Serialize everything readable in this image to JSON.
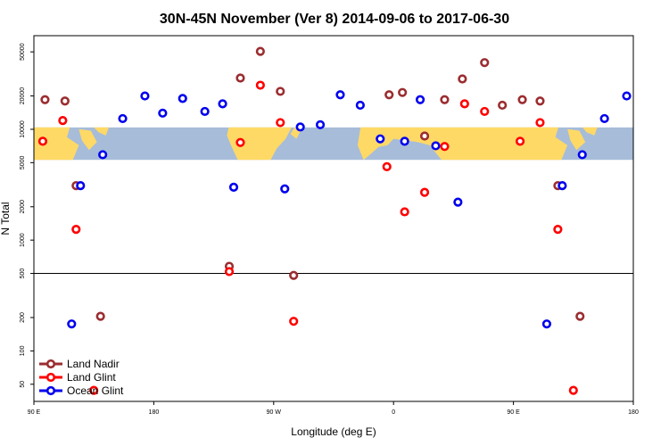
{
  "chart_data": {
    "type": "scatter",
    "title": "30N-45N November (Ver 8)   2014-09-06 to 2017-06-30",
    "xlabel": "Longitude (deg E)",
    "ylabel": "N Total",
    "xlim": [
      -90,
      180
    ],
    "ylim": [
      35,
      70000
    ],
    "yscale": "log",
    "reference_line": 500,
    "x_ticks": [
      {
        "value": -90,
        "label": "90 E"
      },
      {
        "value": -36,
        "label": "180"
      },
      {
        "value": 18,
        "label": "90 W"
      },
      {
        "value": 72,
        "label": "0"
      },
      {
        "value": 126,
        "label": "90 E"
      },
      {
        "value": 180,
        "label": "180"
      }
    ],
    "y_ticks": [
      {
        "value": 50,
        "label": "50"
      },
      {
        "value": 100,
        "label": "100"
      },
      {
        "value": 200,
        "label": "200"
      },
      {
        "value": 500,
        "label": "500"
      },
      {
        "value": 1000,
        "label": "1000"
      },
      {
        "value": 2000,
        "label": "2000"
      },
      {
        "value": 5000,
        "label": "5000"
      },
      {
        "value": 10000,
        "label": "10000"
      },
      {
        "value": 20000,
        "label": "20000"
      },
      {
        "value": 50000,
        "label": "50000"
      }
    ],
    "map_band": {
      "ymin": 5300,
      "ymax": 10400,
      "land_color": "#ffd966",
      "ocean_color": "#a6bcd9"
    },
    "series": [
      {
        "name": "Land Nadir",
        "color": "#9b2d30",
        "points": [
          {
            "x": -85,
            "y": 18500
          },
          {
            "x": -76,
            "y": 18000
          },
          {
            "x": -71,
            "y": 3100
          },
          {
            "x": -60,
            "y": 205
          },
          {
            "x": -2,
            "y": 580
          },
          {
            "x": 3,
            "y": 29000
          },
          {
            "x": 12,
            "y": 50500
          },
          {
            "x": 21,
            "y": 22000
          },
          {
            "x": 27,
            "y": 480
          },
          {
            "x": 70,
            "y": 20500
          },
          {
            "x": 76,
            "y": 21500
          },
          {
            "x": 86,
            "y": 8700
          },
          {
            "x": 95,
            "y": 18500
          },
          {
            "x": 103,
            "y": 28500
          },
          {
            "x": 113,
            "y": 40000
          },
          {
            "x": 121,
            "y": 16500
          },
          {
            "x": 130,
            "y": 18500
          },
          {
            "x": 138,
            "y": 18000
          },
          {
            "x": 146,
            "y": 3100
          },
          {
            "x": 156,
            "y": 205
          }
        ]
      },
      {
        "name": "Land Glint",
        "color": "#ff0000",
        "points": [
          {
            "x": -86,
            "y": 7800
          },
          {
            "x": -77,
            "y": 12000
          },
          {
            "x": -71,
            "y": 1250
          },
          {
            "x": -63,
            "y": 44
          },
          {
            "x": -2,
            "y": 520
          },
          {
            "x": 3,
            "y": 7600
          },
          {
            "x": 12,
            "y": 25000
          },
          {
            "x": 21,
            "y": 11500
          },
          {
            "x": 27,
            "y": 185
          },
          {
            "x": 69,
            "y": 4600
          },
          {
            "x": 77,
            "y": 1800
          },
          {
            "x": 86,
            "y": 2700
          },
          {
            "x": 95,
            "y": 7000
          },
          {
            "x": 104,
            "y": 17000
          },
          {
            "x": 113,
            "y": 14500
          },
          {
            "x": 129,
            "y": 7800
          },
          {
            "x": 138,
            "y": 11500
          },
          {
            "x": 146,
            "y": 1250
          },
          {
            "x": 153,
            "y": 44
          }
        ]
      },
      {
        "name": "Ocean Glint",
        "color": "#0000ee",
        "points": [
          {
            "x": -73,
            "y": 175
          },
          {
            "x": -69,
            "y": 3100
          },
          {
            "x": -59,
            "y": 5900
          },
          {
            "x": -50,
            "y": 12500
          },
          {
            "x": -40,
            "y": 20000
          },
          {
            "x": -32,
            "y": 14000
          },
          {
            "x": -23,
            "y": 19000
          },
          {
            "x": -13,
            "y": 14500
          },
          {
            "x": -5,
            "y": 17000
          },
          {
            "x": 0,
            "y": 3000
          },
          {
            "x": 23,
            "y": 2900
          },
          {
            "x": 30,
            "y": 10500
          },
          {
            "x": 39,
            "y": 11000
          },
          {
            "x": 48,
            "y": 20500
          },
          {
            "x": 57,
            "y": 16500
          },
          {
            "x": 66,
            "y": 8200
          },
          {
            "x": 77,
            "y": 7800
          },
          {
            "x": 84,
            "y": 18500
          },
          {
            "x": 91,
            "y": 7100
          },
          {
            "x": 101,
            "y": 2200
          },
          {
            "x": 141,
            "y": 175
          },
          {
            "x": 148,
            "y": 3100
          },
          {
            "x": 157,
            "y": 5900
          },
          {
            "x": 167,
            "y": 12500
          },
          {
            "x": 177,
            "y": 20000
          }
        ]
      }
    ]
  }
}
